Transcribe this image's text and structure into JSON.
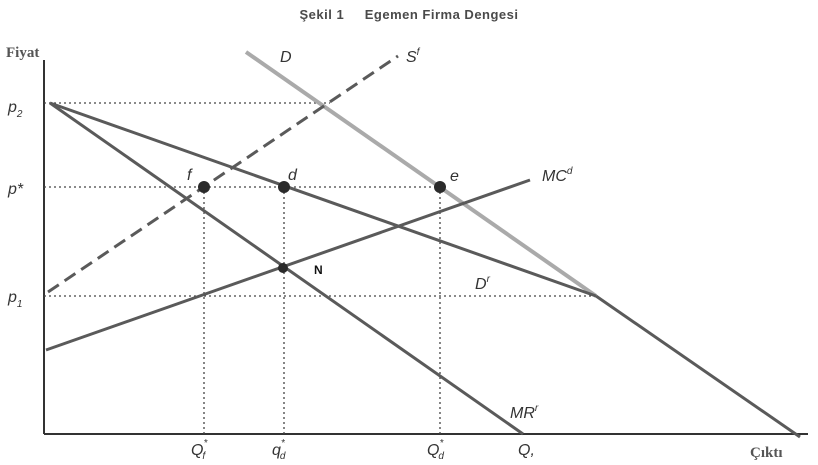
{
  "title": "Şekil 1     Egemen Firma Dengesi",
  "axes": {
    "y_label": "Fiyat",
    "x_label": "Çıktı"
  },
  "price_labels": [
    {
      "id": "p2",
      "base": "p",
      "sub": "2"
    },
    {
      "id": "pstar",
      "base": "p*",
      "sub": ""
    },
    {
      "id": "p1",
      "base": "p",
      "sub": "1"
    }
  ],
  "quantity_labels": [
    {
      "id": "qf",
      "base": "Q",
      "sub": "f",
      "sup": "*"
    },
    {
      "id": "qd",
      "base": "q",
      "sub": "d",
      "sup": "*"
    },
    {
      "id": "Qd",
      "base": "Q",
      "sub": "d",
      "sup": "*"
    },
    {
      "id": "Q",
      "base": "Q,",
      "sub": "",
      "sup": ""
    }
  ],
  "curves": [
    {
      "id": "D",
      "label": "D",
      "sup": "",
      "color": "#aaaaaa",
      "style": "solid"
    },
    {
      "id": "Sf",
      "label": "S",
      "sup": "f",
      "color": "#5a5a5a",
      "style": "dashed"
    },
    {
      "id": "MCd",
      "label": "MC",
      "sup": "d",
      "color": "#5a5a5a",
      "style": "solid"
    },
    {
      "id": "Dr",
      "label": "D",
      "sup": "r",
      "color": "#5a5a5a",
      "style": "solid"
    },
    {
      "id": "MRr",
      "label": "MR",
      "sup": "r",
      "color": "#5a5a5a",
      "style": "solid"
    }
  ],
  "points": [
    {
      "id": "f",
      "label": "f"
    },
    {
      "id": "d",
      "label": "d"
    },
    {
      "id": "e",
      "label": "e"
    },
    {
      "id": "N",
      "label": "N"
    }
  ]
}
